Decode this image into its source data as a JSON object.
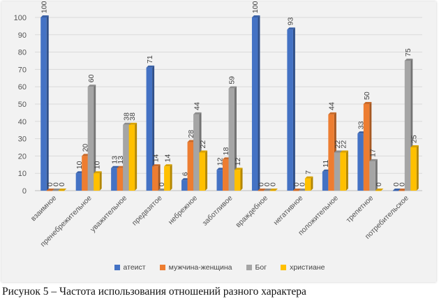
{
  "caption": "Рисунок 5 – Частота использования отношений разного характера",
  "chart_data": {
    "type": "bar",
    "categories": [
      "взаимное",
      "пренебрежительное",
      "уважительное",
      "предвзятое",
      "небрежное",
      "заботливое",
      "враждебное",
      "негативное",
      "положительное",
      "трепетное",
      "потребительское"
    ],
    "ylim": [
      0,
      100
    ],
    "yticks": [
      0,
      10,
      20,
      30,
      40,
      50,
      60,
      70,
      80,
      90,
      100
    ],
    "grid": true,
    "legend_position": "bottom",
    "series": [
      {
        "name": "атеист",
        "color": "#4472c4",
        "values": [
          100,
          10,
          13,
          71,
          6,
          12,
          100,
          93,
          11,
          33,
          0
        ]
      },
      {
        "name": "мужчина-женщина",
        "color": "#ed7d31",
        "values": [
          0,
          20,
          13,
          14,
          28,
          18,
          0,
          0,
          44,
          50,
          0
        ]
      },
      {
        "name": "Бог",
        "color": "#a5a5a5",
        "values": [
          0,
          60,
          38,
          0,
          44,
          59,
          0,
          0,
          22,
          17,
          75
        ]
      },
      {
        "name": "христиане",
        "color": "#ffc000",
        "values": [
          0,
          10,
          38,
          14,
          22,
          12,
          0,
          7,
          22,
          0,
          25
        ]
      }
    ]
  }
}
